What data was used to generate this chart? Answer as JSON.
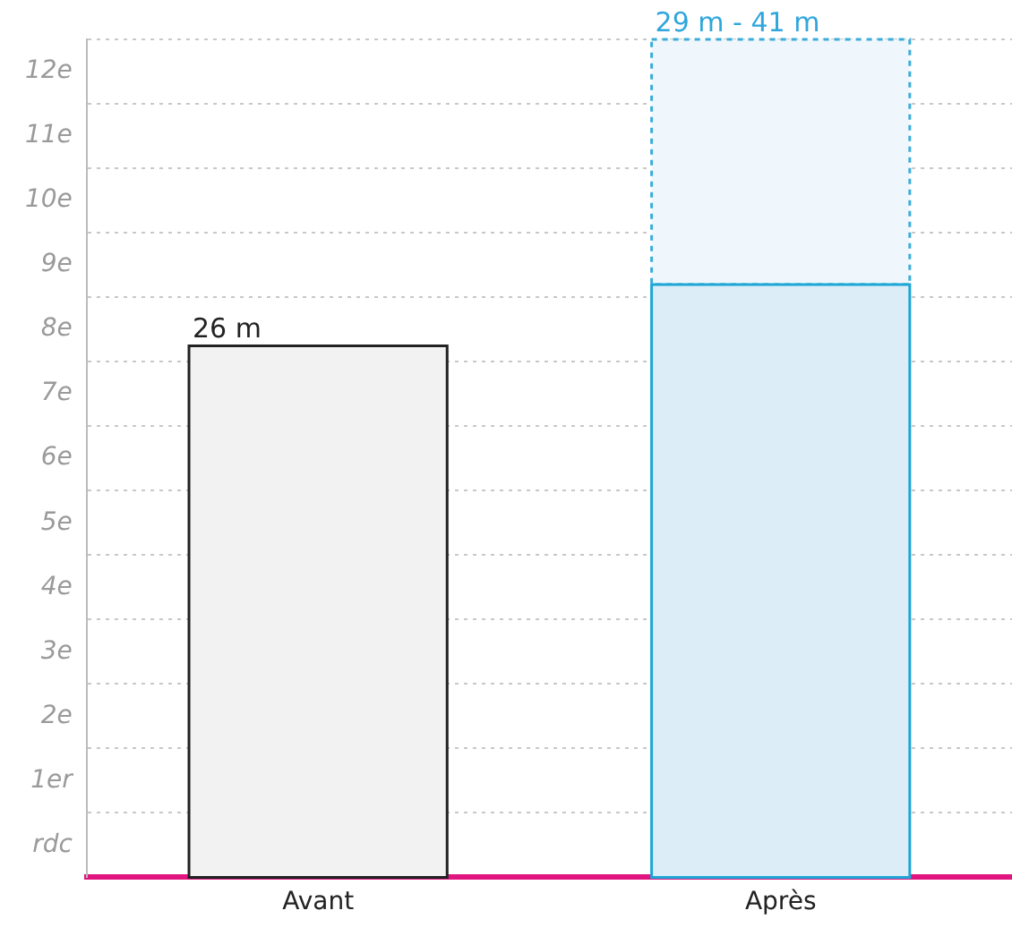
{
  "chart_data": {
    "type": "bar",
    "stacked": true,
    "categories": [
      "Avant",
      "Après"
    ],
    "annotations": [
      {
        "text": "29 m - 41 m",
        "x": "Après",
        "y": 41
      }
    ],
    "series": [
      {
        "colors": [
          "#f2f2f2",
          "#dcedf8"
        ],
        "line_style": "solid",
        "values": [
          26,
          29
        ],
        "value_labels": [
          "26 m",
          null
        ]
      },
      {
        "color": "#f0f7fc",
        "line_style": "dashed",
        "values": [
          null,
          12
        ]
      }
    ],
    "ylim": [
      0,
      41
    ],
    "y2lim": [
      -0.5,
      12.5
    ],
    "y2ticks": [
      {
        "value": -0.5,
        "label": null
      },
      {
        "value": 0,
        "label": "rdc"
      },
      {
        "value": 0.5,
        "label": null
      },
      {
        "value": 1,
        "label": "1er"
      },
      {
        "value": 1.5,
        "label": null
      },
      {
        "value": 2,
        "label": "2e"
      },
      {
        "value": 2.5,
        "label": null
      },
      {
        "value": 3,
        "label": "3e"
      },
      {
        "value": 3.5,
        "label": null
      },
      {
        "value": 4,
        "label": "4e"
      },
      {
        "value": 4.5,
        "label": null
      },
      {
        "value": 5,
        "label": "5e"
      },
      {
        "value": 5.5,
        "label": null
      },
      {
        "value": 6,
        "label": "6e"
      },
      {
        "value": 6.5,
        "label": null
      },
      {
        "value": 7,
        "label": "7e"
      },
      {
        "value": 7.5,
        "label": null
      },
      {
        "value": 8,
        "label": "8e"
      },
      {
        "value": 8.5,
        "label": null
      },
      {
        "value": 9,
        "label": "9e"
      },
      {
        "value": 9.5,
        "label": null
      },
      {
        "value": 10,
        "label": "10e"
      },
      {
        "value": 10.5,
        "label": null
      },
      {
        "value": 11,
        "label": "11e"
      },
      {
        "value": 11.5,
        "label": null
      },
      {
        "value": 12,
        "label": "12e"
      },
      {
        "value": 12.5,
        "label": null
      }
    ],
    "grid": "y",
    "legend": false
  }
}
